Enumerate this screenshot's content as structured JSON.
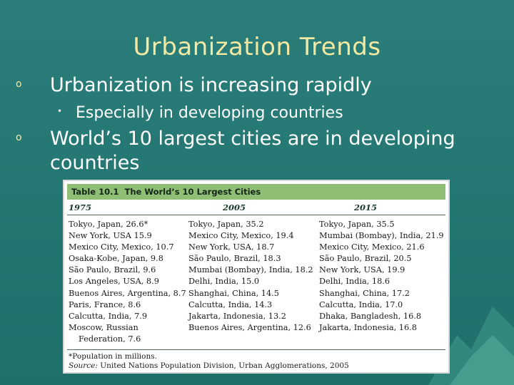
{
  "slide": {
    "title": "Urbanization Trends",
    "bullets": [
      {
        "marker": "o",
        "text": "Urbanization is increasing rapidly"
      },
      {
        "marker": "o",
        "text": "World’s 10 largest cities are in developing countries"
      }
    ],
    "sub_bullet": {
      "marker": "•",
      "text": "Especially in developing countries"
    }
  },
  "table": {
    "number": "Table 10.1",
    "title": "The World’s 10 Largest Cities",
    "columns": [
      "1975",
      "2005",
      "2015"
    ],
    "col_1975": [
      "Tokyo, Japan, 26.6*",
      "New York, USA 15.9",
      "Mexico City, Mexico, 10.7",
      "Osaka-Kobe, Japan, 9.8",
      "São Paulo, Brazil, 9.6",
      "Los Angeles, USA, 8.9",
      "Buenos Aires, Argentina, 8.7",
      "Paris, France, 8.6",
      "Calcutta, India, 7.9",
      "Moscow, Russian",
      "Federation, 7.6"
    ],
    "col_2005": [
      "Tokyo, Japan, 35.2",
      "Mexico City, Mexico, 19.4",
      "New York, USA, 18.7",
      "São Paulo, Brazil, 18.3",
      "Mumbai (Bombay), India, 18.2",
      "Delhi, India, 15.0",
      "Shanghai, China, 14.5",
      "Calcutta, India, 14.3",
      "Jakarta, Indonesia, 13.2",
      "Buenos Aires, Argentina, 12.6"
    ],
    "col_2015": [
      "Tokyo, Japan, 35.5",
      "Mumbai (Bombay), India, 21.9",
      "Mexico City, Mexico, 21.6",
      "São Paulo, Brazil, 20.5",
      "New York, USA, 19.9",
      "Delhi, India, 18.6",
      "Shanghai, China, 17.2",
      "Calcutta, India, 17.0",
      "Dhaka, Bangladesh, 16.8",
      "Jakarta, Indonesia, 16.8"
    ],
    "footnote": "*Population in millions.",
    "source_label": "Source:",
    "source_text": "United Nations Population Division, Urban Agglomerations, 2005"
  },
  "colors": {
    "background": "#257873",
    "title": "#f3e9a2",
    "table_header": "#8fbf74"
  }
}
